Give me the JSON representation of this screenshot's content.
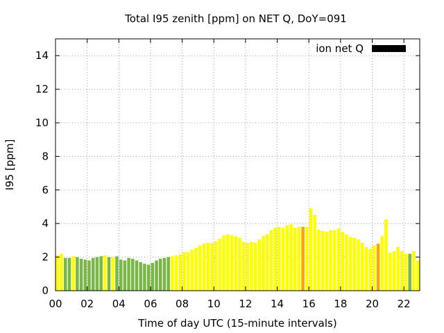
{
  "chart_data": {
    "type": "bar",
    "title": "Total I95 zenith [ppm] on NET Q, DoY=091",
    "xlabel": "Time of day UTC (15-minute intervals)",
    "ylabel": "I95 [ppm]",
    "xlim": [
      0,
      23
    ],
    "ylim": [
      0,
      15
    ],
    "x_ticks": [
      0,
      2,
      4,
      6,
      8,
      10,
      12,
      14,
      16,
      18,
      20,
      22
    ],
    "x_tick_labels": [
      "00",
      "02",
      "04",
      "06",
      "08",
      "10",
      "12",
      "14",
      "16",
      "18",
      "20",
      "22"
    ],
    "y_ticks": [
      0,
      2,
      4,
      6,
      8,
      10,
      12,
      14
    ],
    "y_tick_labels": [
      "0",
      "2",
      "4",
      "6",
      "8",
      "10",
      "12",
      "14"
    ],
    "grid": true,
    "legend": {
      "label": "ion net Q",
      "color": "#000000",
      "placement": "top-right"
    },
    "interval_hours": 0.25,
    "colors": {
      "g": "#7ab648",
      "y": "#ffff00",
      "o": "#ffa500"
    },
    "values": [
      2.1,
      2.2,
      1.95,
      1.95,
      2.05,
      2.0,
      1.9,
      1.85,
      1.8,
      1.95,
      2.0,
      2.05,
      2.1,
      2.0,
      2.0,
      2.05,
      1.85,
      1.8,
      1.95,
      1.9,
      1.8,
      1.7,
      1.6,
      1.55,
      1.65,
      1.8,
      1.9,
      1.95,
      2.0,
      2.05,
      2.1,
      2.15,
      2.3,
      2.3,
      2.45,
      2.55,
      2.7,
      2.8,
      2.85,
      2.85,
      2.95,
      3.1,
      3.3,
      3.35,
      3.3,
      3.25,
      3.15,
      2.9,
      2.85,
      2.9,
      2.85,
      3.05,
      3.25,
      3.35,
      3.6,
      3.75,
      3.8,
      3.75,
      3.9,
      3.95,
      3.75,
      3.8,
      3.8,
      3.8,
      4.9,
      4.5,
      3.65,
      3.55,
      3.5,
      3.6,
      3.6,
      3.7,
      3.5,
      3.35,
      3.2,
      3.15,
      3.05,
      2.85,
      2.6,
      2.5,
      2.7,
      2.8,
      3.25,
      4.25,
      2.25,
      2.35,
      2.6,
      2.35,
      2.2,
      2.2,
      2.35,
      1.8
    ],
    "bar_colors": "yyggygggggggygyggggggggggggggyyyyyyyyyyyyyyyyyyyyyyyyyyyyyyyyyoyyyyyyyyyyyyyyyyyyoyyyyyyyg"
  }
}
